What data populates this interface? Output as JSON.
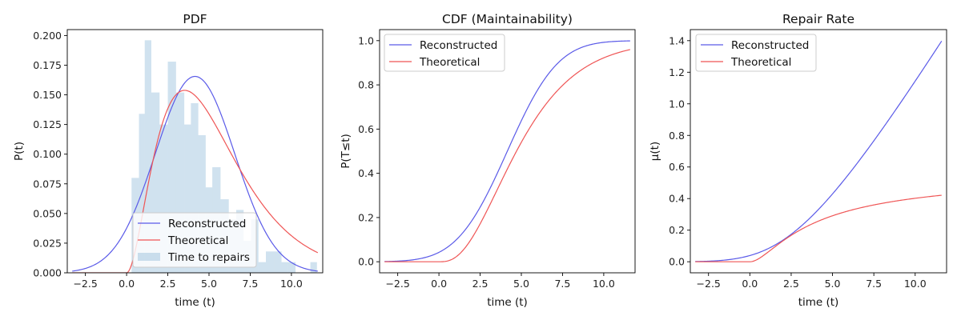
{
  "chart_data": [
    {
      "type": "line",
      "title": "PDF",
      "xlabel": "time (t)",
      "ylabel": "P(t)",
      "xlim": [
        -3.6,
        11.9
      ],
      "ylim": [
        0,
        0.205
      ],
      "xticks": [
        -2.5,
        0.0,
        2.5,
        5.0,
        7.5,
        10.0
      ],
      "xtick_labels": [
        "−2.5",
        "0.0",
        "2.5",
        "5.0",
        "7.5",
        "10.0"
      ],
      "yticks": [
        0.0,
        0.025,
        0.05,
        0.075,
        0.1,
        0.125,
        0.15,
        0.175,
        0.2
      ],
      "ytick_labels": [
        "0.000",
        "0.025",
        "0.050",
        "0.075",
        "0.100",
        "0.125",
        "0.150",
        "0.175",
        "0.200"
      ],
      "legend_position": "lower center",
      "legend": [
        "Reconstructed",
        "Theoretical",
        "Time to repairs"
      ],
      "histogram": {
        "name": "Time to repairs",
        "color": "#1f77b4",
        "edges": [
          0.3,
          0.75,
          1.1,
          1.5,
          2.0,
          2.5,
          3.0,
          3.5,
          3.9,
          4.35,
          4.8,
          5.2,
          5.7,
          6.2,
          6.65,
          7.1,
          7.55,
          8.0,
          8.45,
          8.95,
          9.4,
          9.8,
          10.25,
          10.7,
          11.15,
          11.55
        ],
        "values": [
          0.08,
          0.134,
          0.196,
          0.152,
          0.125,
          0.178,
          0.152,
          0.125,
          0.143,
          0.116,
          0.072,
          0.089,
          0.062,
          0.045,
          0.053,
          0.027,
          0.045,
          0.009,
          0.018,
          0.018,
          0.009,
          0.009,
          0.0,
          0.0,
          0.009
        ]
      },
      "series": [
        {
          "name": "Reconstructed",
          "color": "#5a5ae8",
          "kind": "normal",
          "mean": 4.15,
          "sd": 2.41
        },
        {
          "name": "Theoretical",
          "color": "#ef5555",
          "kind": "gamma",
          "shape": 3.0,
          "scale": 1.76
        }
      ]
    },
    {
      "type": "line",
      "title": "CDF (Maintainability)",
      "xlabel": "time (t)",
      "ylabel": "P(T≤t)",
      "xlim": [
        -3.6,
        11.9
      ],
      "ylim": [
        -0.05,
        1.05
      ],
      "xticks": [
        -2.5,
        0.0,
        2.5,
        5.0,
        7.5,
        10.0
      ],
      "xtick_labels": [
        "−2.5",
        "0.0",
        "2.5",
        "5.0",
        "7.5",
        "10.0"
      ],
      "yticks": [
        0.0,
        0.2,
        0.4,
        0.6,
        0.8,
        1.0
      ],
      "ytick_labels": [
        "0.0",
        "0.2",
        "0.4",
        "0.6",
        "0.8",
        "1.0"
      ],
      "legend_position": "upper left",
      "legend": [
        "Reconstructed",
        "Theoretical"
      ],
      "series": [
        {
          "name": "Reconstructed",
          "color": "#5a5ae8",
          "kind": "normal",
          "mean": 4.15,
          "sd": 2.41
        },
        {
          "name": "Theoretical",
          "color": "#ef5555",
          "kind": "gamma",
          "shape": 3.0,
          "scale": 1.76
        }
      ]
    },
    {
      "type": "line",
      "title": "Repair Rate",
      "xlabel": "time (t)",
      "ylabel": "μ(t)",
      "xlim": [
        -3.6,
        11.9
      ],
      "ylim": [
        -0.07,
        1.47
      ],
      "xticks": [
        -2.5,
        0.0,
        2.5,
        5.0,
        7.5,
        10.0
      ],
      "xtick_labels": [
        "−2.5",
        "0.0",
        "2.5",
        "5.0",
        "7.5",
        "10.0"
      ],
      "yticks": [
        0.0,
        0.2,
        0.4,
        0.6,
        0.8,
        1.0,
        1.2,
        1.4
      ],
      "ytick_labels": [
        "0.0",
        "0.2",
        "0.4",
        "0.6",
        "0.8",
        "1.0",
        "1.2",
        "1.4"
      ],
      "legend_position": "upper left",
      "legend": [
        "Reconstructed",
        "Theoretical"
      ],
      "series": [
        {
          "name": "Reconstructed",
          "color": "#5a5ae8",
          "kind": "normal",
          "mean": 4.15,
          "sd": 2.41
        },
        {
          "name": "Theoretical",
          "color": "#ef5555",
          "kind": "gamma",
          "shape": 3.0,
          "scale": 1.76
        }
      ]
    }
  ]
}
